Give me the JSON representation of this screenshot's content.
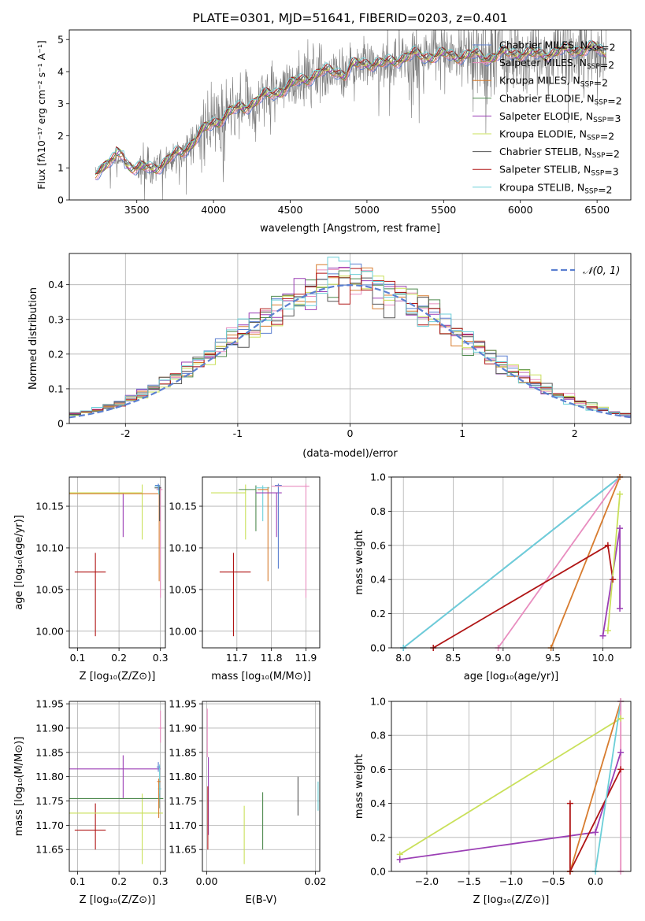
{
  "chart_data": [
    {
      "type": "line",
      "title": "PLATE=0301, MJD=51641, FIBERID=0203, z=0.401",
      "xlabel": "wavelength [Angstrom, rest frame]",
      "ylabel": "Flux [fλ10⁻¹⁷ erg cm⁻² s⁻¹ A⁻¹]",
      "xlim": [
        3060,
        6720
      ],
      "ylim": [
        0,
        5.3
      ],
      "xticks": [
        3500,
        4000,
        4500,
        5000,
        5500,
        6000,
        6500
      ],
      "yticks": [
        0,
        1,
        2,
        3,
        4,
        5
      ],
      "grid": false,
      "legend_position": "top-right",
      "data_start": 3230,
      "data_end": 6560,
      "anchors": {
        "x": [
          3230,
          3300,
          3400,
          3500,
          3600,
          3700,
          3800,
          3900,
          4000,
          4100,
          4200,
          4300,
          4400,
          4500,
          4600,
          4700,
          4800,
          4861,
          4900,
          5000,
          5100,
          5200,
          5300,
          5400,
          5500,
          5600,
          5700,
          5800,
          5900,
          6000,
          6100,
          6200,
          6300,
          6400,
          6500,
          6560
        ],
        "y": [
          0.85,
          1.15,
          1.25,
          1.0,
          0.95,
          1.25,
          1.5,
          2.0,
          2.4,
          2.7,
          2.9,
          3.15,
          3.35,
          3.55,
          3.8,
          3.95,
          4.05,
          3.9,
          4.15,
          4.3,
          4.2,
          4.4,
          4.5,
          4.5,
          4.5,
          4.5,
          4.5,
          4.45,
          4.55,
          4.6,
          4.5,
          4.6,
          4.65,
          4.7,
          4.7,
          4.6
        ]
      },
      "series": [
        {
          "name": "Chabrier MILES, N<sub>SSP</sub>=2",
          "color": "#5b7fd0"
        },
        {
          "name": "Salpeter MILES, N<sub>SSP</sub>=2",
          "color": "#e88dbf"
        },
        {
          "name": "Kroupa MILES, N<sub>SSP</sub>=2",
          "color": "#d77c2f"
        },
        {
          "name": "Chabrier ELODIE, N<sub>SSP</sub>=2",
          "color": "#4f8a4f"
        },
        {
          "name": "Salpeter ELODIE, N<sub>SSP</sub>=3",
          "color": "#9b3fb5"
        },
        {
          "name": "Kroupa ELODIE, N<sub>SSP</sub>=2",
          "color": "#c9e05a"
        },
        {
          "name": "Chabrier STELIB, N<sub>SSP</sub>=2",
          "color": "#555555"
        },
        {
          "name": "Salpeter STELIB, N<sub>SSP</sub>=3",
          "color": "#b01515"
        },
        {
          "name": "Kroupa STELIB, N<sub>SSP</sub>=2",
          "color": "#6ccfd8"
        }
      ]
    },
    {
      "type": "line",
      "xlabel": "(data-model)/error",
      "ylabel": "Normed distribution",
      "xlim": [
        -2.5,
        2.5
      ],
      "ylim": [
        0,
        0.49
      ],
      "xticks": [
        -2,
        -1,
        0,
        1,
        2
      ],
      "yticks": [
        0.0,
        0.1,
        0.2,
        0.3,
        0.4
      ],
      "grid": true,
      "legend_position": "top-right",
      "legend_label": "𝒩(0, 1)",
      "gaussian_color": "#5b7fd0",
      "bin_width": 0.1,
      "histograms": [
        {
          "color": "#5b7fd0",
          "offset": 0.0
        },
        {
          "color": "#e88dbf",
          "offset": 0.02
        },
        {
          "color": "#d77c2f",
          "offset": -0.02
        },
        {
          "color": "#4f8a4f",
          "offset": 0.03
        },
        {
          "color": "#9b3fb5",
          "offset": -0.03
        },
        {
          "color": "#c9e05a",
          "offset": 0.04
        },
        {
          "color": "#555555",
          "offset": -0.01
        },
        {
          "color": "#b01515",
          "offset": 0.01
        },
        {
          "color": "#6ccfd8",
          "offset": -0.04
        }
      ]
    },
    {
      "type": "scatter",
      "xlabel": "Z [log₁₀(Z/Z⊙)]",
      "ylabel": "age  [log₁₀(age/yr)]",
      "xlim": [
        0.08,
        0.312
      ],
      "ylim": [
        9.98,
        10.185
      ],
      "xticks": [
        0.1,
        0.2,
        0.3
      ],
      "xtick_labels": [
        "0.1",
        "0.2",
        "0.3"
      ],
      "yticks": [
        10.0,
        10.05,
        10.1,
        10.15
      ],
      "ytick_labels": [
        "10.00",
        "10.05",
        "10.10",
        "10.15"
      ],
      "grid": true,
      "points": [
        {
          "x": 0.143,
          "y": 10.071,
          "xerr": [
            0.05,
            0.025
          ],
          "yerr": [
            0.077,
            0.023
          ],
          "color": "#b01515"
        },
        {
          "x": 0.21,
          "y": 10.166,
          "xerr": [
            0.13,
            0
          ],
          "yerr": [
            0.053,
            0
          ],
          "color": "#9b3fb5"
        },
        {
          "x": 0.256,
          "y": 10.166,
          "xerr": [
            0.176,
            0
          ],
          "yerr": [
            0.056,
            0.01
          ],
          "color": "#c9e05a"
        },
        {
          "x": 0.297,
          "y": 10.165,
          "xerr": [
            0.217,
            0
          ],
          "yerr": [
            0.105,
            0.003
          ],
          "color": "#d77c2f"
        },
        {
          "x": 0.3,
          "y": 10.17,
          "xerr": [
            0.01,
            0.005
          ],
          "yerr": [
            0.13,
            0.004
          ],
          "color": "#e88dbf"
        },
        {
          "x": 0.298,
          "y": 10.172,
          "xerr": [
            0.012,
            0.004
          ],
          "yerr": [
            0.04,
            0.003
          ],
          "color": "#555555"
        },
        {
          "x": 0.296,
          "y": 10.174,
          "xerr": [
            0.01,
            0.004
          ],
          "yerr": [
            0.01,
            0.002
          ],
          "color": "#6ccfd8"
        },
        {
          "x": 0.295,
          "y": 10.175,
          "xerr": [
            0.008,
            0.003
          ],
          "yerr": [
            0.006,
            0.002
          ],
          "color": "#5b7fd0"
        }
      ]
    },
    {
      "type": "scatter",
      "xlabel": "mass [log₁₀(M/M⊙)]",
      "xlim": [
        11.6,
        11.94
      ],
      "ylim": [
        9.98,
        10.185
      ],
      "xticks": [
        11.7,
        11.8,
        11.9
      ],
      "xtick_labels": [
        "11.7",
        "11.8",
        "11.9"
      ],
      "yticks": [
        10.0,
        10.05,
        10.1,
        10.15
      ],
      "ytick_labels": [
        "10.00",
        "10.05",
        "10.10",
        "10.15"
      ],
      "grid": true,
      "points": [
        {
          "x": 11.69,
          "y": 10.071,
          "xerr": [
            0.04,
            0.05
          ],
          "yerr": [
            0.077,
            0.023
          ],
          "color": "#b01515"
        },
        {
          "x": 11.725,
          "y": 10.166,
          "xerr": [
            0.1,
            0
          ],
          "yerr": [
            0.056,
            0.01
          ],
          "color": "#c9e05a"
        },
        {
          "x": 11.755,
          "y": 10.17,
          "xerr": [
            0.05,
            0
          ],
          "yerr": [
            0.05,
            0.005
          ],
          "color": "#4f8a4f"
        },
        {
          "x": 11.775,
          "y": 10.172,
          "xerr": [
            0.02,
            0.02
          ],
          "yerr": [
            0.04,
            0.003
          ],
          "color": "#6ccfd8"
        },
        {
          "x": 11.79,
          "y": 10.17,
          "xerr": [
            0.03,
            0
          ],
          "yerr": [
            0.11,
            0.003
          ],
          "color": "#d77c2f"
        },
        {
          "x": 11.815,
          "y": 10.166,
          "xerr": [
            0.06,
            0.015
          ],
          "yerr": [
            0.053,
            0
          ],
          "color": "#9b3fb5"
        },
        {
          "x": 11.82,
          "y": 10.175,
          "xerr": [
            0.01,
            0.01
          ],
          "yerr": [
            0.1,
            0.002
          ],
          "color": "#5b7fd0"
        },
        {
          "x": 11.9,
          "y": 10.174,
          "xerr": [
            0.1,
            0.01
          ],
          "yerr": [
            0.134,
            0.003
          ],
          "color": "#e88dbf"
        }
      ]
    },
    {
      "type": "line",
      "xlabel": "age  [log₁₀(age/yr)]",
      "ylabel": "mass weight",
      "xlim": [
        7.88,
        10.28
      ],
      "ylim": [
        0,
        1.0
      ],
      "xticks": [
        8.0,
        8.5,
        9.0,
        9.5,
        10.0
      ],
      "xtick_labels": [
        "8.0",
        "8.5",
        "9.0",
        "9.5",
        "10.0"
      ],
      "yticks": [
        0.0,
        0.2,
        0.4,
        0.6,
        0.8,
        1.0
      ],
      "ytick_labels": [
        "0.0",
        "0.2",
        "0.4",
        "0.6",
        "0.8",
        "1.0"
      ],
      "grid": true,
      "series": [
        {
          "color": "#5b7fd0",
          "x": [
            8.0,
            10.17
          ],
          "y": [
            0.0,
            1.0
          ]
        },
        {
          "color": "#6ccfd8",
          "x": [
            8.0,
            10.17
          ],
          "y": [
            0.0,
            1.0
          ]
        },
        {
          "color": "#e88dbf",
          "x": [
            8.95,
            10.17
          ],
          "y": [
            0.0,
            1.0
          ]
        },
        {
          "color": "#d77c2f",
          "x": [
            9.48,
            10.17
          ],
          "y": [
            0.0,
            1.0
          ]
        },
        {
          "color": "#b01515",
          "x": [
            8.3,
            10.05,
            10.1
          ],
          "y": [
            0.0,
            0.6,
            0.4
          ]
        },
        {
          "color": "#9b3fb5",
          "x": [
            10.0,
            10.17,
            10.17
          ],
          "y": [
            0.07,
            0.7,
            0.23
          ]
        },
        {
          "color": "#c9e05a",
          "x": [
            10.05,
            10.17
          ],
          "y": [
            0.1,
            0.9
          ]
        }
      ]
    },
    {
      "type": "scatter",
      "xlabel": "Z [log₁₀(Z/Z⊙)]",
      "ylabel": "mass [log₁₀(M/M⊙)]",
      "xlim": [
        0.08,
        0.312
      ],
      "ylim": [
        11.605,
        11.955
      ],
      "xticks": [
        0.1,
        0.2,
        0.3
      ],
      "xtick_labels": [
        "0.1",
        "0.2",
        "0.3"
      ],
      "yticks": [
        11.65,
        11.7,
        11.75,
        11.8,
        11.85,
        11.9,
        11.95
      ],
      "ytick_labels": [
        "11.65",
        "11.70",
        "11.75",
        "11.80",
        "11.85",
        "11.90",
        "11.95"
      ],
      "grid": true,
      "points": [
        {
          "x": 0.143,
          "y": 11.69,
          "xerr": [
            0.05,
            0.025
          ],
          "yerr": [
            0.04,
            0.055
          ],
          "color": "#b01515"
        },
        {
          "x": 0.21,
          "y": 11.816,
          "xerr": [
            0.13,
            0.09
          ],
          "yerr": [
            0.06,
            0.028
          ],
          "color": "#9b3fb5"
        },
        {
          "x": 0.256,
          "y": 11.725,
          "xerr": [
            0.176,
            0.05
          ],
          "yerr": [
            0.105,
            0.04
          ],
          "color": "#c9e05a"
        },
        {
          "x": 0.297,
          "y": 11.755,
          "xerr": [
            0.217,
            0.01
          ],
          "yerr": [
            0.02,
            0.01
          ],
          "color": "#4f8a4f"
        },
        {
          "x": 0.3,
          "y": 11.9,
          "xerr": [
            0.004,
            0.004
          ],
          "yerr": [
            0.03,
            0.036
          ],
          "color": "#e88dbf"
        },
        {
          "x": 0.298,
          "y": 11.775,
          "xerr": [
            0.004,
            0.004
          ],
          "yerr": [
            0.02,
            0.05
          ],
          "color": "#6ccfd8"
        },
        {
          "x": 0.296,
          "y": 11.79,
          "xerr": [
            0.004,
            0.004
          ],
          "yerr": [
            0.075,
            0.006
          ],
          "color": "#d77c2f"
        },
        {
          "x": 0.295,
          "y": 11.82,
          "xerr": [
            0.004,
            0.004
          ],
          "yerr": [
            0.01,
            0.01
          ],
          "color": "#5b7fd0"
        }
      ]
    },
    {
      "type": "scatter",
      "xlabel": "E(B-V)",
      "xlim": [
        -0.0008,
        0.0208
      ],
      "ylim": [
        11.605,
        11.955
      ],
      "xticks": [
        0.0,
        0.02
      ],
      "xtick_labels": [
        "0.00",
        "0.02"
      ],
      "yticks": [
        11.65,
        11.7,
        11.75,
        11.8,
        11.85,
        11.9,
        11.95
      ],
      "ytick_labels": [
        "11.65",
        "11.70",
        "11.75",
        "11.80",
        "11.85",
        "11.90",
        "11.95"
      ],
      "grid": true,
      "points": [
        {
          "x": 0.0001,
          "y": 11.9,
          "xerr": [
            0,
            0
          ],
          "yerr": [
            0.06,
            0.04
          ],
          "color": "#e88dbf"
        },
        {
          "x": 0.0003,
          "y": 11.78,
          "xerr": [
            0,
            0
          ],
          "yerr": [
            0.1,
            0.06
          ],
          "color": "#9b3fb5"
        },
        {
          "x": 0.0002,
          "y": 11.72,
          "xerr": [
            0,
            0
          ],
          "yerr": [
            0.07,
            0.06
          ],
          "color": "#b01515"
        },
        {
          "x": 0.0069,
          "y": 11.68,
          "xerr": [
            0,
            0
          ],
          "yerr": [
            0.06,
            0.06
          ],
          "color": "#c9e05a"
        },
        {
          "x": 0.0103,
          "y": 11.71,
          "xerr": [
            0,
            0
          ],
          "yerr": [
            0.06,
            0.058
          ],
          "color": "#4f8a4f"
        },
        {
          "x": 0.0168,
          "y": 11.76,
          "xerr": [
            0,
            0
          ],
          "yerr": [
            0.04,
            0.04
          ],
          "color": "#555555"
        },
        {
          "x": 0.0205,
          "y": 11.76,
          "xerr": [
            0,
            0
          ],
          "yerr": [
            0.03,
            0.03
          ],
          "color": "#6ccfd8"
        }
      ]
    },
    {
      "type": "line",
      "xlabel": "Z [log₁₀(Z/Z⊙)]",
      "ylabel": "mass weight",
      "xlim": [
        -2.42,
        0.42
      ],
      "ylim": [
        0,
        1.0
      ],
      "xticks": [
        -2.0,
        -1.5,
        -1.0,
        -0.5,
        0.0
      ],
      "xtick_labels": [
        "−2.0",
        "−1.5",
        "−1.0",
        "−0.5",
        "0.0"
      ],
      "yticks": [
        0.0,
        0.2,
        0.4,
        0.6,
        0.8,
        1.0
      ],
      "ytick_labels": [
        "0.0",
        "0.2",
        "0.4",
        "0.6",
        "0.8",
        "1.0"
      ],
      "grid": true,
      "series": [
        {
          "color": "#c9e05a",
          "x": [
            -2.32,
            0.3
          ],
          "y": [
            0.1,
            0.9
          ]
        },
        {
          "color": "#9b3fb5",
          "x": [
            -2.32,
            0.0,
            0.3
          ],
          "y": [
            0.07,
            0.23,
            0.7
          ]
        },
        {
          "color": "#d77c2f",
          "x": [
            -0.3,
            0.3
          ],
          "y": [
            0.0,
            1.0
          ]
        },
        {
          "color": "#b01515",
          "x": [
            -0.3,
            -0.3,
            0.3
          ],
          "y": [
            0.4,
            0.0,
            0.6
          ]
        },
        {
          "color": "#6ccfd8",
          "x": [
            0.0,
            0.3
          ],
          "y": [
            0.0,
            1.0
          ]
        },
        {
          "color": "#e88dbf",
          "x": [
            0.3,
            0.3
          ],
          "y": [
            0.0,
            1.0
          ]
        }
      ]
    }
  ]
}
